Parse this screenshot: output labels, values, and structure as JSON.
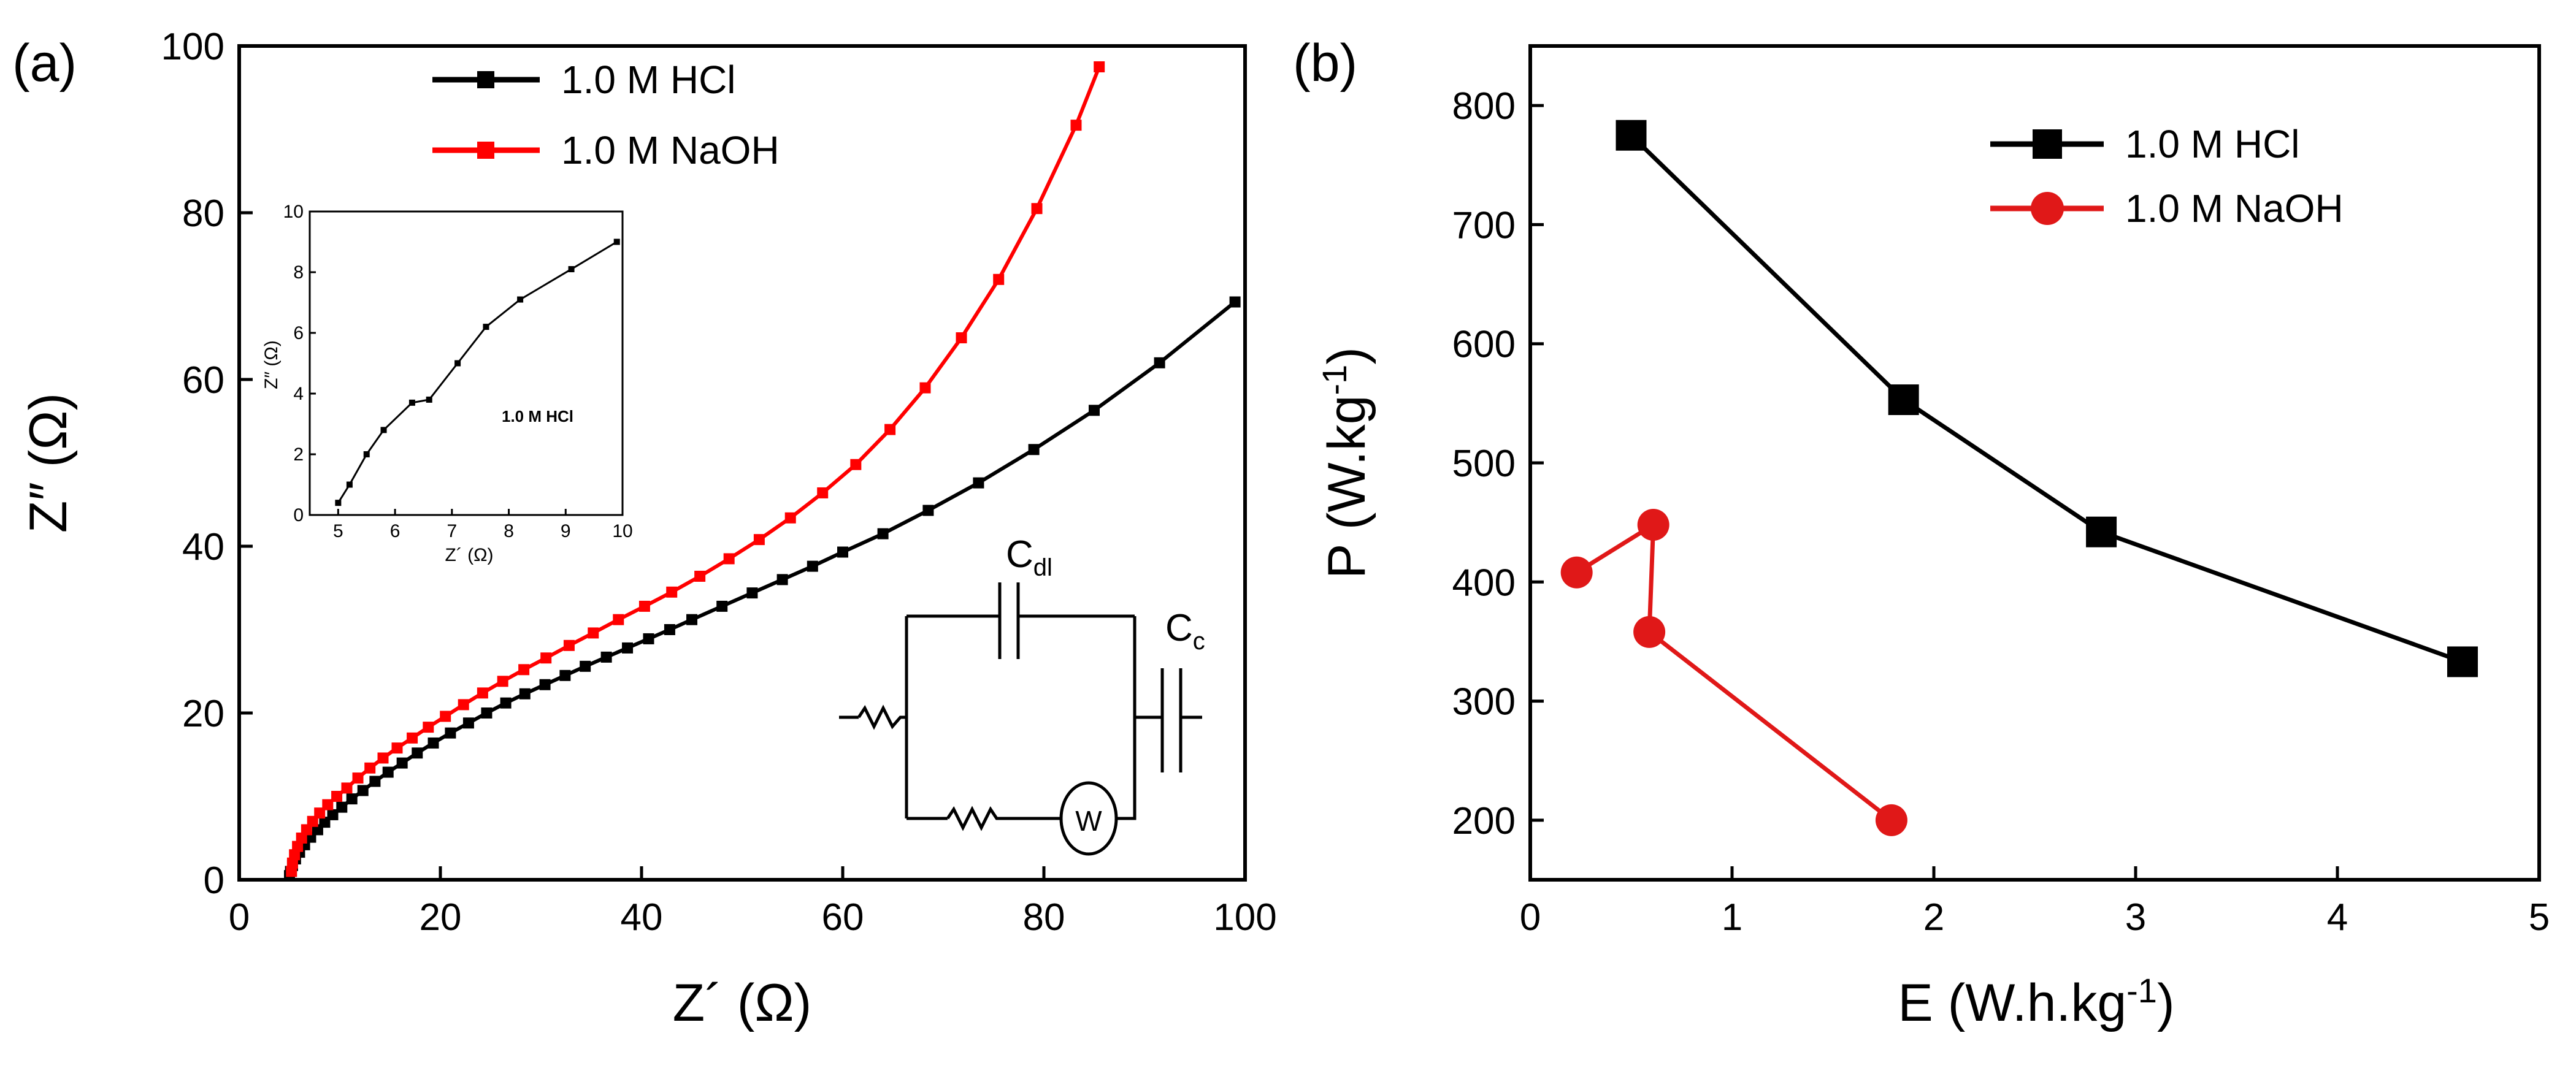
{
  "chart_data": [
    {
      "panel": "(a)",
      "type": "scatter",
      "xlabel": "Z´ (Ω)",
      "ylabel": "Z″ (Ω)",
      "xlim": [
        0,
        100
      ],
      "ylim": [
        0,
        100
      ],
      "xticks": [
        "0",
        "20",
        "40",
        "60",
        "80",
        "100"
      ],
      "yticks": [
        "0",
        "20",
        "40",
        "60",
        "80",
        "100"
      ],
      "legend_position": "top",
      "grid": false,
      "series": [
        {
          "name": "1.0 M HCl",
          "color": "#000000",
          "marker": "square",
          "x": [
            5.0,
            5.1,
            5.3,
            5.6,
            6.0,
            6.5,
            7.1,
            7.8,
            8.5,
            9.3,
            10.2,
            11.2,
            12.3,
            13.5,
            14.8,
            16.2,
            17.7,
            19.3,
            21.0,
            22.8,
            24.6,
            26.5,
            28.4,
            30.4,
            32.4,
            34.4,
            36.5,
            38.6,
            40.7,
            42.8,
            45.0,
            48.0,
            51.0,
            54.0,
            57.0,
            60.0,
            64.0,
            68.5,
            73.5,
            79.0,
            85.0,
            91.5,
            99.0
          ],
          "y": [
            0.5,
            1.0,
            1.7,
            2.5,
            3.3,
            4.2,
            5.1,
            6.0,
            6.9,
            7.8,
            8.7,
            9.7,
            10.7,
            11.8,
            12.9,
            14.0,
            15.2,
            16.4,
            17.6,
            18.8,
            20.0,
            21.2,
            22.3,
            23.4,
            24.5,
            25.6,
            26.7,
            27.8,
            28.9,
            30.0,
            31.2,
            32.8,
            34.4,
            36.0,
            37.6,
            39.3,
            41.5,
            44.3,
            47.6,
            51.6,
            56.3,
            62.0,
            69.3
          ]
        },
        {
          "name": "1.0 M NaOH",
          "color": "#ff0000",
          "marker": "square",
          "x": [
            5.2,
            5.3,
            5.5,
            5.8,
            6.2,
            6.7,
            7.3,
            8.0,
            8.8,
            9.7,
            10.7,
            11.8,
            13.0,
            14.3,
            15.7,
            17.2,
            18.8,
            20.5,
            22.3,
            24.2,
            26.2,
            28.3,
            30.5,
            32.8,
            35.2,
            37.7,
            40.3,
            43.0,
            45.8,
            48.7,
            51.7,
            54.8,
            58.0,
            61.3,
            64.7,
            68.2,
            71.8,
            75.5,
            79.3,
            83.2,
            85.5
          ],
          "y": [
            1.0,
            2.0,
            3.0,
            4.0,
            5.0,
            6.0,
            7.0,
            8.0,
            9.0,
            10.0,
            11.0,
            12.2,
            13.4,
            14.6,
            15.8,
            17.0,
            18.3,
            19.6,
            21.0,
            22.4,
            23.8,
            25.2,
            26.6,
            28.1,
            29.6,
            31.2,
            32.8,
            34.5,
            36.4,
            38.5,
            40.8,
            43.4,
            46.4,
            49.8,
            54.0,
            59.0,
            65.0,
            72.0,
            80.5,
            90.5,
            97.5
          ]
        }
      ],
      "inset": {
        "type": "line",
        "xlabel": "Z´ (Ω)",
        "ylabel": "Z″ (Ω)",
        "annotation": "1.0 M HCl",
        "xlim": [
          4.5,
          10
        ],
        "ylim": [
          0,
          10
        ],
        "xticks": [
          "5",
          "6",
          "7",
          "8",
          "9",
          "10"
        ],
        "yticks": [
          "0",
          "2",
          "4",
          "6",
          "8",
          "10"
        ],
        "x": [
          5.0,
          5.2,
          5.5,
          5.8,
          6.3,
          6.6,
          7.1,
          7.6,
          8.2,
          9.1,
          9.9
        ],
        "y": [
          0.4,
          1.0,
          2.0,
          2.8,
          3.7,
          3.8,
          5.0,
          6.2,
          7.1,
          8.1,
          9.0
        ]
      },
      "circuit": {
        "labels": [
          {
            "main": "C",
            "sub": "dl"
          },
          {
            "main": "C",
            "sub": "c"
          },
          {
            "main": "W",
            "sub": ""
          }
        ]
      }
    },
    {
      "panel": "(b)",
      "type": "line",
      "xlabel": "E (W.h.kg-1)",
      "ylabel": "P (W.kg-1)",
      "xlim": [
        0,
        5
      ],
      "ylim": [
        150,
        850
      ],
      "xticks": [
        "0",
        "1",
        "2",
        "3",
        "4",
        "5"
      ],
      "yticks": [
        "200",
        "300",
        "400",
        "500",
        "600",
        "700",
        "800"
      ],
      "legend_position": "top-right",
      "grid": false,
      "series": [
        {
          "name": "1.0 M HCl",
          "color": "#000000",
          "marker": "square",
          "x": [
            0.5,
            1.85,
            2.83,
            4.62
          ],
          "y": [
            775,
            553,
            442,
            333
          ]
        },
        {
          "name": "1.0 M NaOH",
          "color": "#ff0000",
          "marker": "circle",
          "x": [
            0.23,
            0.61,
            0.59,
            1.79
          ],
          "y": [
            408,
            448,
            358,
            200
          ]
        }
      ]
    }
  ]
}
